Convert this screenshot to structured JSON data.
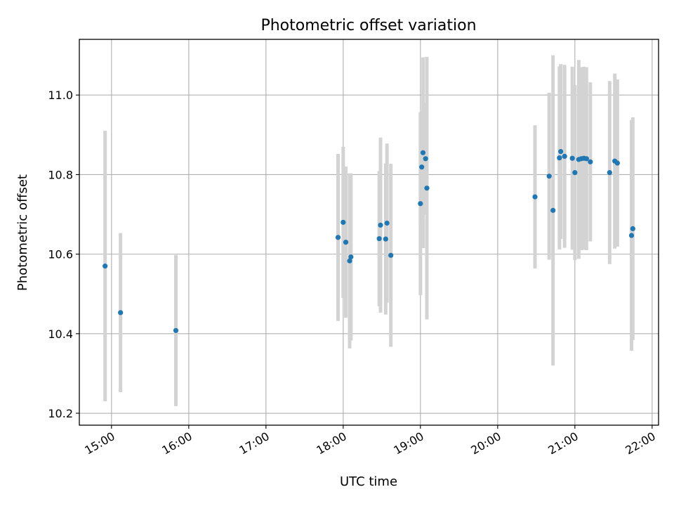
{
  "chart_data": {
    "type": "scatter",
    "title": "Photometric offset variation",
    "xlabel": "UTC time",
    "ylabel": "Photometric offset",
    "x_ticks": [
      "15:00",
      "16:00",
      "17:00",
      "18:00",
      "19:00",
      "20:00",
      "21:00",
      "22:00"
    ],
    "y_ticks": [
      "10.2",
      "10.4",
      "10.6",
      "10.8",
      "11.0"
    ],
    "xlim": [
      "14:35",
      "22:05"
    ],
    "ylim": [
      10.17,
      11.14
    ],
    "grid": true,
    "marker_color": "#1f77b4",
    "errorbar_color": "#d3d3d3",
    "points": [
      {
        "t": "14:55",
        "y": 10.57,
        "err": 0.34
      },
      {
        "t": "15:07",
        "y": 10.453,
        "err": 0.2
      },
      {
        "t": "15:50",
        "y": 10.408,
        "err": 0.19
      },
      {
        "t": "17:56",
        "y": 10.642,
        "err": 0.21
      },
      {
        "t": "18:00",
        "y": 10.68,
        "err": 0.19
      },
      {
        "t": "18:02",
        "y": 10.63,
        "err": 0.19
      },
      {
        "t": "18:05",
        "y": 10.583,
        "err": 0.22
      },
      {
        "t": "18:06",
        "y": 10.593,
        "err": 0.21
      },
      {
        "t": "18:28",
        "y": 10.639,
        "err": 0.17
      },
      {
        "t": "18:29",
        "y": 10.673,
        "err": 0.22
      },
      {
        "t": "18:33",
        "y": 10.638,
        "err": 0.19
      },
      {
        "t": "18:34",
        "y": 10.678,
        "err": 0.2
      },
      {
        "t": "18:37",
        "y": 10.597,
        "err": 0.23
      },
      {
        "t": "19:00",
        "y": 10.727,
        "err": 0.23
      },
      {
        "t": "19:01",
        "y": 10.819,
        "err": 0.14
      },
      {
        "t": "19:02",
        "y": 10.855,
        "err": 0.24
      },
      {
        "t": "19:04",
        "y": 10.84,
        "err": 0.14
      },
      {
        "t": "19:05",
        "y": 10.766,
        "err": 0.33
      },
      {
        "t": "20:29",
        "y": 10.744,
        "err": 0.18
      },
      {
        "t": "20:40",
        "y": 10.796,
        "err": 0.21
      },
      {
        "t": "20:43",
        "y": 10.71,
        "err": 0.39
      },
      {
        "t": "20:48",
        "y": 10.842,
        "err": 0.23
      },
      {
        "t": "20:49",
        "y": 10.858,
        "err": 0.22
      },
      {
        "t": "20:52",
        "y": 10.846,
        "err": 0.23
      },
      {
        "t": "20:58",
        "y": 10.841,
        "err": 0.23
      },
      {
        "t": "21:00",
        "y": 10.805,
        "err": 0.22
      },
      {
        "t": "21:03",
        "y": 10.838,
        "err": 0.25
      },
      {
        "t": "21:05",
        "y": 10.84,
        "err": 0.23
      },
      {
        "t": "21:07",
        "y": 10.841,
        "err": 0.23
      },
      {
        "t": "21:09",
        "y": 10.84,
        "err": 0.23
      },
      {
        "t": "21:12",
        "y": 10.832,
        "err": 0.2
      },
      {
        "t": "21:27",
        "y": 10.805,
        "err": 0.23
      },
      {
        "t": "21:31",
        "y": 10.834,
        "err": 0.22
      },
      {
        "t": "21:33",
        "y": 10.829,
        "err": 0.21
      },
      {
        "t": "21:44",
        "y": 10.647,
        "err": 0.29
      },
      {
        "t": "21:45",
        "y": 10.664,
        "err": 0.28
      }
    ]
  }
}
